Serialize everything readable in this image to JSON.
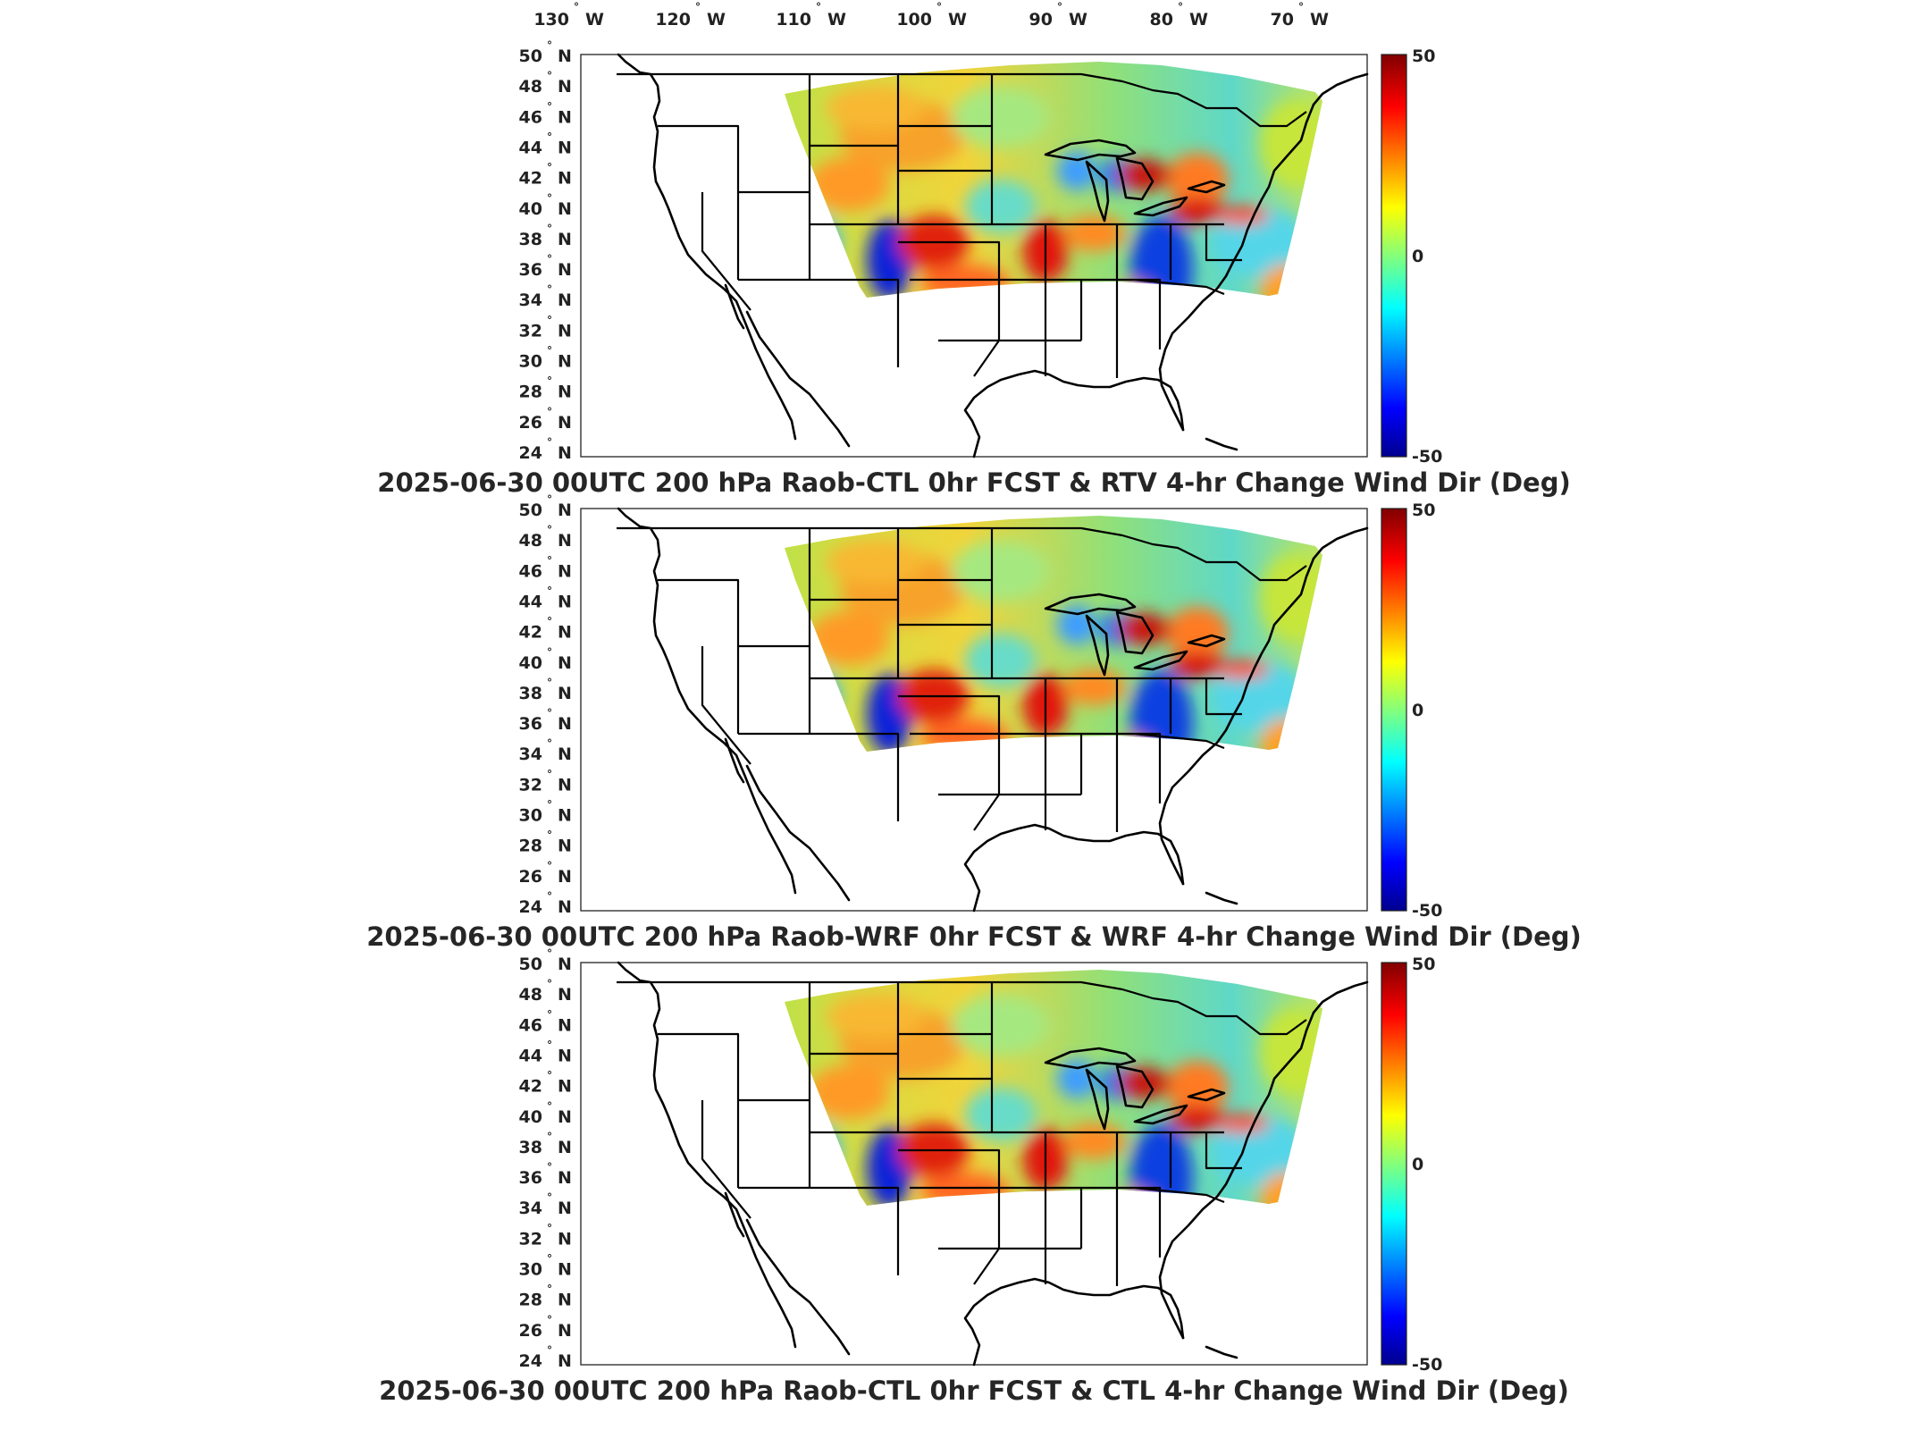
{
  "top_axis": {
    "longitude_labels": [
      {
        "value": "130",
        "suffix": "W"
      },
      {
        "value": "120",
        "suffix": "W"
      },
      {
        "value": "110",
        "suffix": "W"
      },
      {
        "value": "100",
        "suffix": "W"
      },
      {
        "value": "90",
        "suffix": "W"
      },
      {
        "value": "80",
        "suffix": "W"
      },
      {
        "value": "70",
        "suffix": "W"
      }
    ]
  },
  "latitude_labels": [
    {
      "value": "50",
      "suffix": "N"
    },
    {
      "value": "48",
      "suffix": "N"
    },
    {
      "value": "46",
      "suffix": "N"
    },
    {
      "value": "44",
      "suffix": "N"
    },
    {
      "value": "42",
      "suffix": "N"
    },
    {
      "value": "40",
      "suffix": "N"
    },
    {
      "value": "38",
      "suffix": "N"
    },
    {
      "value": "36",
      "suffix": "N"
    },
    {
      "value": "34",
      "suffix": "N"
    },
    {
      "value": "32",
      "suffix": "N"
    },
    {
      "value": "30",
      "suffix": "N"
    },
    {
      "value": "28",
      "suffix": "N"
    },
    {
      "value": "26",
      "suffix": "N"
    },
    {
      "value": "24",
      "suffix": "N"
    }
  ],
  "degree_symbol": "°",
  "colorbar": {
    "max_label": "50",
    "mid_label": "0",
    "min_label": "-50",
    "range": [
      -50,
      50
    ],
    "colormap": "jet",
    "colors": [
      "#00008f",
      "#0000ff",
      "#00ffff",
      "#ffff00",
      "#ff0000",
      "#800000"
    ]
  },
  "panels": [
    {
      "title": "2025-06-30 00UTC 200 hPa Raob-CTL 0hr FCST & RTV 4-hr Change Wind Dir (Deg)"
    },
    {
      "title": "2025-06-30 00UTC 200 hPa Raob-WRF 0hr FCST & WRF 4-hr Change Wind Dir (Deg)"
    },
    {
      "title": "2025-06-30 00UTC 200 hPa Raob-CTL 0hr FCST & CTL 4-hr Change Wind Dir (Deg)"
    }
  ]
}
